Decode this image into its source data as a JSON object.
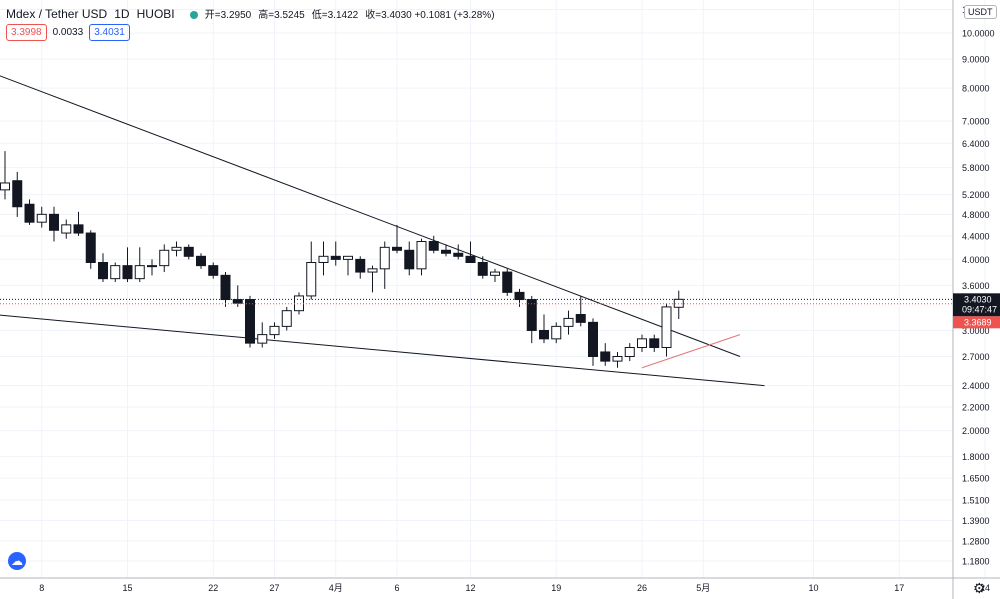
{
  "header": {
    "symbol": "Mdex / Tether USD",
    "interval": "1D",
    "exchange": "HUOBI",
    "open": "开=3.2950",
    "high": "高=3.5245",
    "low": "低=3.1422",
    "close": "收=3.4030 +0.1081 (+3.28%)"
  },
  "quote": {
    "bid": "3.3998",
    "spread": "0.0033",
    "ask": "3.4031"
  },
  "price_axis": {
    "unit": "USDT",
    "ticks": [
      {
        "v": 11.0,
        "label": "11.0000"
      },
      {
        "v": 10.0,
        "label": "10.0000"
      },
      {
        "v": 9.0,
        "label": "9.0000"
      },
      {
        "v": 8.0,
        "label": "8.0000"
      },
      {
        "v": 7.0,
        "label": "7.0000"
      },
      {
        "v": 6.4,
        "label": "6.4000"
      },
      {
        "v": 5.8,
        "label": "5.8000"
      },
      {
        "v": 5.2,
        "label": "5.2000"
      },
      {
        "v": 4.8,
        "label": "4.8000"
      },
      {
        "v": 4.4,
        "label": "4.4000"
      },
      {
        "v": 4.0,
        "label": "4.0000"
      },
      {
        "v": 3.6,
        "label": "3.6000"
      },
      {
        "v": 3.0,
        "label": "3.0000"
      },
      {
        "v": 2.7,
        "label": "2.7000"
      },
      {
        "v": 2.4,
        "label": "2.4000"
      },
      {
        "v": 2.2,
        "label": "2.2000"
      },
      {
        "v": 2.0,
        "label": "2.0000"
      },
      {
        "v": 1.8,
        "label": "1.8000"
      },
      {
        "v": 1.65,
        "label": "1.6500"
      },
      {
        "v": 1.51,
        "label": "1.5100"
      },
      {
        "v": 1.39,
        "label": "1.3900"
      },
      {
        "v": 1.28,
        "label": "1.2800"
      },
      {
        "v": 1.18,
        "label": "1.1800"
      }
    ],
    "last_price": {
      "value": 3.403,
      "label": "3.4030",
      "countdown": "09:47:47"
    },
    "ref_price": {
      "value": 3.3689,
      "label": "3.3689"
    }
  },
  "chart_data": {
    "type": "candlestick",
    "log_scale": true,
    "ylim": [
      1.1,
      11.8
    ],
    "x_ticks": [
      {
        "i": 3,
        "label": "8"
      },
      {
        "i": 10,
        "label": "15"
      },
      {
        "i": 17,
        "label": "22"
      },
      {
        "i": 22,
        "label": "27"
      },
      {
        "i": 27,
        "label": "4月"
      },
      {
        "i": 32,
        "label": "6"
      },
      {
        "i": 38,
        "label": "12"
      },
      {
        "i": 45,
        "label": "19"
      },
      {
        "i": 52,
        "label": "26"
      },
      {
        "i": 57,
        "label": "5月"
      },
      {
        "i": 66,
        "label": "10"
      },
      {
        "i": 73,
        "label": "17"
      },
      {
        "i": 80,
        "label": "24"
      }
    ],
    "candles": [
      {
        "o": 5.3,
        "h": 6.2,
        "l": 5.1,
        "c": 5.45
      },
      {
        "o": 5.5,
        "h": 5.7,
        "l": 4.75,
        "c": 4.95
      },
      {
        "o": 5.0,
        "h": 5.1,
        "l": 4.6,
        "c": 4.65
      },
      {
        "o": 4.65,
        "h": 4.95,
        "l": 4.55,
        "c": 4.8
      },
      {
        "o": 4.8,
        "h": 4.95,
        "l": 4.3,
        "c": 4.5
      },
      {
        "o": 4.45,
        "h": 4.7,
        "l": 4.35,
        "c": 4.6
      },
      {
        "o": 4.6,
        "h": 4.85,
        "l": 4.4,
        "c": 4.45
      },
      {
        "o": 4.45,
        "h": 4.5,
        "l": 3.85,
        "c": 3.95
      },
      {
        "o": 3.95,
        "h": 4.1,
        "l": 3.65,
        "c": 3.7
      },
      {
        "o": 3.7,
        "h": 3.95,
        "l": 3.65,
        "c": 3.9
      },
      {
        "o": 3.9,
        "h": 4.2,
        "l": 3.65,
        "c": 3.7
      },
      {
        "o": 3.7,
        "h": 4.2,
        "l": 3.65,
        "c": 3.9
      },
      {
        "o": 3.9,
        "h": 4.0,
        "l": 3.75,
        "c": 3.9
      },
      {
        "o": 3.9,
        "h": 4.25,
        "l": 3.8,
        "c": 4.15
      },
      {
        "o": 4.15,
        "h": 4.3,
        "l": 4.05,
        "c": 4.2
      },
      {
        "o": 4.2,
        "h": 4.25,
        "l": 4.0,
        "c": 4.05
      },
      {
        "o": 4.05,
        "h": 4.1,
        "l": 3.85,
        "c": 3.9
      },
      {
        "o": 3.9,
        "h": 3.95,
        "l": 3.7,
        "c": 3.75
      },
      {
        "o": 3.75,
        "h": 3.8,
        "l": 3.3,
        "c": 3.4
      },
      {
        "o": 3.4,
        "h": 3.6,
        "l": 3.3,
        "c": 3.35
      },
      {
        "o": 3.4,
        "h": 3.45,
        "l": 2.8,
        "c": 2.85
      },
      {
        "o": 2.85,
        "h": 3.1,
        "l": 2.8,
        "c": 2.95
      },
      {
        "o": 2.95,
        "h": 3.1,
        "l": 2.9,
        "c": 3.05
      },
      {
        "o": 3.05,
        "h": 3.3,
        "l": 3.0,
        "c": 3.25
      },
      {
        "o": 3.25,
        "h": 3.5,
        "l": 3.2,
        "c": 3.45
      },
      {
        "o": 3.45,
        "h": 4.3,
        "l": 3.4,
        "c": 3.95
      },
      {
        "o": 3.95,
        "h": 4.3,
        "l": 3.75,
        "c": 4.05
      },
      {
        "o": 4.05,
        "h": 4.3,
        "l": 3.9,
        "c": 4.0
      },
      {
        "o": 4.0,
        "h": 4.05,
        "l": 3.75,
        "c": 4.05
      },
      {
        "o": 4.0,
        "h": 4.05,
        "l": 3.7,
        "c": 3.8
      },
      {
        "o": 3.8,
        "h": 3.9,
        "l": 3.5,
        "c": 3.85
      },
      {
        "o": 3.85,
        "h": 4.3,
        "l": 3.55,
        "c": 4.2
      },
      {
        "o": 4.2,
        "h": 4.6,
        "l": 4.1,
        "c": 4.15
      },
      {
        "o": 4.15,
        "h": 4.3,
        "l": 3.75,
        "c": 3.85
      },
      {
        "o": 3.85,
        "h": 4.35,
        "l": 3.75,
        "c": 4.3
      },
      {
        "o": 4.3,
        "h": 4.4,
        "l": 4.1,
        "c": 4.15
      },
      {
        "o": 4.15,
        "h": 4.25,
        "l": 4.05,
        "c": 4.1
      },
      {
        "o": 4.1,
        "h": 4.25,
        "l": 4.0,
        "c": 4.05
      },
      {
        "o": 4.05,
        "h": 4.3,
        "l": 3.95,
        "c": 3.95
      },
      {
        "o": 3.95,
        "h": 4.05,
        "l": 3.7,
        "c": 3.75
      },
      {
        "o": 3.75,
        "h": 3.85,
        "l": 3.65,
        "c": 3.8
      },
      {
        "o": 3.8,
        "h": 3.85,
        "l": 3.45,
        "c": 3.5
      },
      {
        "o": 3.5,
        "h": 3.55,
        "l": 3.3,
        "c": 3.4
      },
      {
        "o": 3.4,
        "h": 3.45,
        "l": 2.85,
        "c": 3.0
      },
      {
        "o": 3.0,
        "h": 3.2,
        "l": 2.85,
        "c": 2.9
      },
      {
        "o": 2.9,
        "h": 3.1,
        "l": 2.85,
        "c": 3.05
      },
      {
        "o": 3.05,
        "h": 3.25,
        "l": 2.95,
        "c": 3.15
      },
      {
        "o": 3.2,
        "h": 3.45,
        "l": 3.05,
        "c": 3.1
      },
      {
        "o": 3.1,
        "h": 3.15,
        "l": 2.6,
        "c": 2.7
      },
      {
        "o": 2.75,
        "h": 2.85,
        "l": 2.6,
        "c": 2.65
      },
      {
        "o": 2.65,
        "h": 2.75,
        "l": 2.58,
        "c": 2.7
      },
      {
        "o": 2.7,
        "h": 2.85,
        "l": 2.65,
        "c": 2.8
      },
      {
        "o": 2.8,
        "h": 2.95,
        "l": 2.75,
        "c": 2.9
      },
      {
        "o": 2.9,
        "h": 2.95,
        "l": 2.75,
        "c": 2.8
      },
      {
        "o": 2.8,
        "h": 3.35,
        "l": 2.7,
        "c": 3.3
      },
      {
        "o": 3.295,
        "h": 3.5245,
        "l": 3.1422,
        "c": 3.403
      }
    ],
    "trendlines": [
      {
        "from": {
          "i": -1,
          "v": 8.5
        },
        "to": {
          "i": 60,
          "v": 2.7
        },
        "color": "#131722"
      },
      {
        "from": {
          "i": -1,
          "v": 3.2
        },
        "to": {
          "i": 62,
          "v": 2.4
        },
        "color": "#131722"
      },
      {
        "from": {
          "i": 52,
          "v": 2.58
        },
        "to": {
          "i": 60,
          "v": 2.95
        },
        "color": "#e57373"
      }
    ]
  }
}
